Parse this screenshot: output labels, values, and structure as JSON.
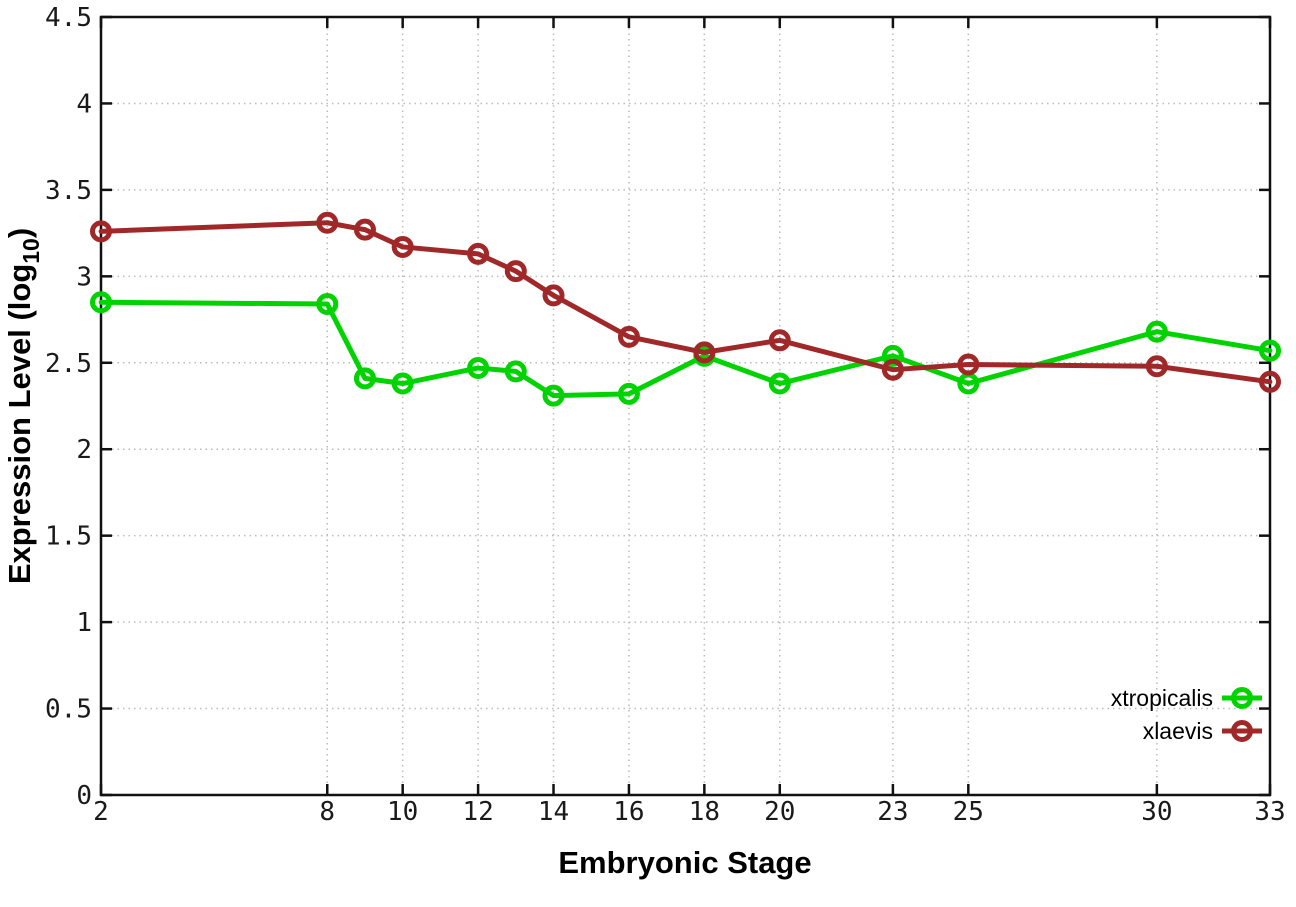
{
  "chart_data": {
    "type": "line",
    "title": "",
    "xlabel": "Embryonic Stage",
    "ylabel": "Expression Level (log10)",
    "ylabel_parts": {
      "pre": "Expression Level (log",
      "sub": "10",
      "post": ")"
    },
    "xlim": [
      2,
      33
    ],
    "ylim": [
      0,
      4.5
    ],
    "x_ticks": [
      2,
      8,
      10,
      12,
      14,
      16,
      18,
      20,
      23,
      25,
      30,
      33
    ],
    "y_ticks": [
      0,
      0.5,
      1,
      1.5,
      2,
      2.5,
      3,
      3.5,
      4,
      4.5
    ],
    "grid": true,
    "legend_position": "inside bottom-right",
    "x": [
      2,
      8,
      9,
      10,
      12,
      13,
      14,
      16,
      18,
      20,
      23,
      25,
      30,
      33
    ],
    "series": [
      {
        "name": "xtropicalis",
        "color": "#00d300",
        "values": [
          2.85,
          2.84,
          2.41,
          2.38,
          2.47,
          2.45,
          2.31,
          2.32,
          2.54,
          2.38,
          2.54,
          2.38,
          2.68,
          2.57
        ]
      },
      {
        "name": "xlaevis",
        "color": "#a02828",
        "values": [
          3.26,
          3.31,
          3.27,
          3.17,
          3.13,
          3.03,
          2.89,
          2.65,
          2.56,
          2.63,
          2.46,
          2.49,
          2.48,
          2.39
        ]
      }
    ],
    "colors": {
      "grid": "#bcbcbc",
      "axis": "#111111",
      "background": "#ffffff"
    }
  }
}
